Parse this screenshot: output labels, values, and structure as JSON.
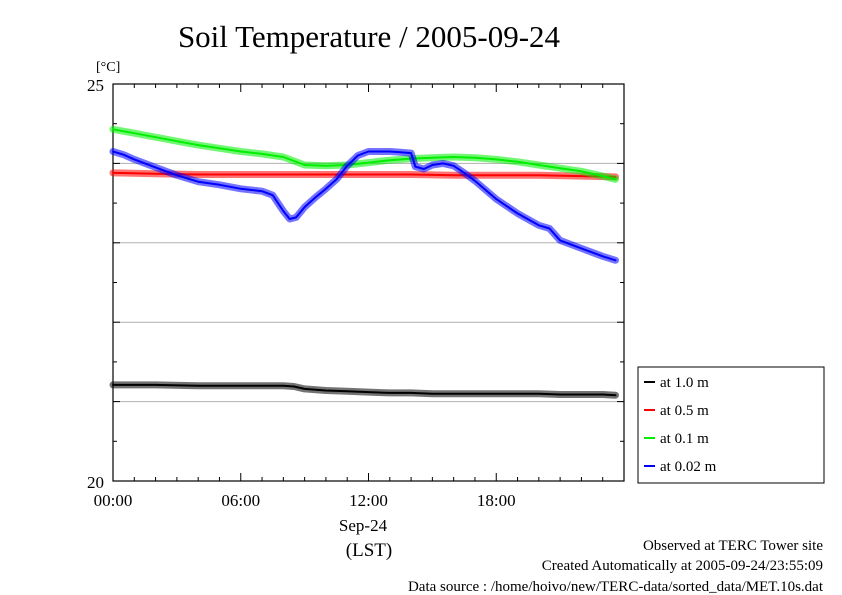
{
  "chart_data": {
    "type": "line",
    "title": "Soil Temperature / 2005-09-24",
    "yunit": "[°C]",
    "ylim": [
      20,
      25
    ],
    "ytick_labels": [
      "25",
      "20"
    ],
    "xlim": [
      0,
      24
    ],
    "xticks": [
      0,
      6,
      12,
      18
    ],
    "xtick_labels": [
      "00:00",
      "06:00",
      "12:00",
      "18:00"
    ],
    "xdate_label": "Sep-24",
    "xlabel": "(LST)",
    "grid_y": [
      21,
      22,
      23,
      24
    ],
    "grid": true,
    "legend_position": "right",
    "series": [
      {
        "name": "at 1.0 m",
        "color": "#000000",
        "x": [
          0,
          2,
          4,
          6,
          8,
          8.5,
          9,
          10,
          11,
          12,
          13,
          14,
          15,
          16,
          17,
          18,
          19,
          20,
          21,
          22,
          23,
          23.6
        ],
        "values": [
          21.21,
          21.21,
          21.2,
          21.2,
          21.2,
          21.19,
          21.16,
          21.14,
          21.13,
          21.12,
          21.11,
          21.11,
          21.1,
          21.1,
          21.1,
          21.1,
          21.1,
          21.1,
          21.09,
          21.09,
          21.09,
          21.08
        ]
      },
      {
        "name": "at 0.5 m",
        "color": "#ff0000",
        "x": [
          0,
          2,
          4,
          6,
          8,
          10,
          12,
          14,
          16,
          18,
          20,
          22,
          23.6
        ],
        "values": [
          23.88,
          23.87,
          23.86,
          23.86,
          23.86,
          23.86,
          23.86,
          23.86,
          23.85,
          23.85,
          23.85,
          23.84,
          23.83
        ]
      },
      {
        "name": "at 0.1 m",
        "color": "#00ee00",
        "x": [
          0,
          1,
          2,
          3,
          4,
          5,
          6,
          7,
          8,
          8.5,
          9,
          10,
          11,
          12,
          13,
          14,
          15,
          16,
          17,
          18,
          19,
          20,
          21,
          22,
          23,
          23.6
        ],
        "values": [
          24.43,
          24.38,
          24.33,
          24.28,
          24.23,
          24.19,
          24.15,
          24.12,
          24.08,
          24.03,
          23.98,
          23.97,
          23.98,
          24.01,
          24.04,
          24.06,
          24.07,
          24.08,
          24.07,
          24.05,
          24.02,
          23.98,
          23.94,
          23.9,
          23.84,
          23.8
        ]
      },
      {
        "name": "at 0.02 m",
        "color": "#0000ff",
        "x": [
          0,
          0.5,
          1,
          2,
          3,
          4,
          5,
          6,
          7,
          7.5,
          8,
          8.3,
          8.6,
          9,
          9.5,
          10,
          10.5,
          11,
          11.5,
          12,
          12.5,
          13,
          13.5,
          14,
          14.2,
          14.6,
          15,
          15.5,
          16,
          16.5,
          17,
          18,
          19,
          20,
          20.5,
          21,
          22,
          23,
          23.6
        ],
        "values": [
          24.15,
          24.11,
          24.05,
          23.95,
          23.85,
          23.77,
          23.73,
          23.68,
          23.65,
          23.6,
          23.4,
          23.3,
          23.32,
          23.45,
          23.57,
          23.68,
          23.8,
          23.97,
          24.1,
          24.15,
          24.15,
          24.15,
          24.14,
          24.13,
          23.96,
          23.93,
          23.98,
          24.0,
          23.97,
          23.88,
          23.78,
          23.55,
          23.37,
          23.22,
          23.18,
          23.03,
          22.93,
          22.83,
          22.78
        ]
      }
    ]
  },
  "footer": {
    "line1": "Observed at TERC Tower site",
    "line2": "Created Automatically at 2005-09-24/23:55:09",
    "line3": "Data source : /home/hoivo/new/TERC-data/sorted_data/MET.10s.dat"
  }
}
